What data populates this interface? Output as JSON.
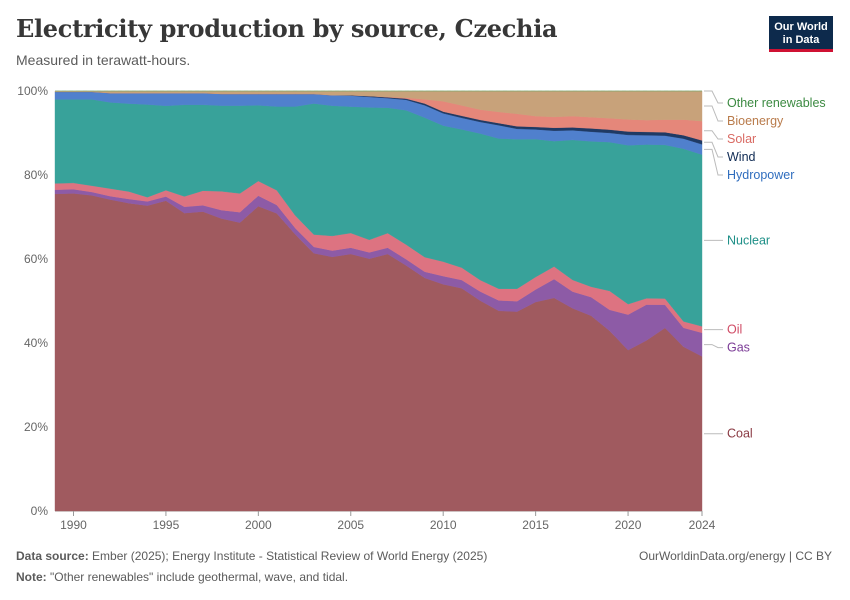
{
  "header": {
    "title": "Electricity production by source, Czechia",
    "subtitle": "Measured in terawatt-hours.",
    "logo_line1": "Our World",
    "logo_line2": "in Data"
  },
  "footer": {
    "source_label": "Data source:",
    "source_text": "Ember (2025); Energy Institute - Statistical Review of World Energy (2025)",
    "url": "OurWorldinData.org/energy | CC BY",
    "note_label": "Note:",
    "note_text": "\"Other renewables\" include geothermal, wave, and tidal."
  },
  "chart_data": {
    "type": "area",
    "stacked": true,
    "normalized": true,
    "x_ticks": [
      "1990",
      "1995",
      "2000",
      "2005",
      "2010",
      "2015",
      "2020",
      "2024"
    ],
    "y_ticks": [
      "0%",
      "20%",
      "40%",
      "60%",
      "80%",
      "100%"
    ],
    "ylim": [
      0,
      100
    ],
    "xlim": [
      1989,
      2024
    ],
    "grid": true,
    "legend_placement": "right, inline labels",
    "x": [
      1989,
      1990,
      1991,
      1992,
      1993,
      1994,
      1995,
      1996,
      1997,
      1998,
      1999,
      2000,
      2001,
      2002,
      2003,
      2004,
      2005,
      2006,
      2007,
      2008,
      2009,
      2010,
      2011,
      2012,
      2013,
      2014,
      2015,
      2016,
      2017,
      2018,
      2019,
      2020,
      2021,
      2022,
      2023,
      2024
    ],
    "series": [
      {
        "name": "Coal",
        "color": "#a05a5f",
        "values": [
          75.5,
          76,
          75,
          74,
          73.5,
          72.5,
          73.5,
          71.5,
          71.5,
          70,
          69,
          72.5,
          71,
          66,
          62,
          60.5,
          61,
          60,
          61.5,
          58.5,
          56,
          55,
          54,
          51,
          48,
          48,
          50,
          51,
          48.5,
          47,
          43,
          38.5,
          40.5,
          43.5,
          39,
          36
        ]
      },
      {
        "name": "Gas",
        "color": "#8d5ba6",
        "values": [
          1,
          1,
          0.8,
          0.8,
          1,
          1,
          1,
          1.5,
          1.5,
          2,
          2.5,
          2.5,
          2,
          1.5,
          1.5,
          1.5,
          1.5,
          1.5,
          1.5,
          1.5,
          1.5,
          2,
          2,
          2.2,
          2.5,
          2.5,
          3,
          4.5,
          4,
          4.5,
          5,
          8.5,
          8.5,
          5.5,
          4.5,
          5.5
        ]
      },
      {
        "name": "Oil",
        "color": "#dd7381",
        "values": [
          1.5,
          1.5,
          1.5,
          1.8,
          1.8,
          1,
          1.5,
          2.5,
          3.5,
          4.5,
          4.5,
          3.5,
          3.5,
          3,
          3,
          3.5,
          3.5,
          3,
          3.5,
          3.5,
          3.5,
          3.5,
          3,
          2.8,
          2.8,
          3,
          3,
          3,
          2.8,
          2.5,
          4.5,
          2.5,
          1.5,
          1.5,
          1.5,
          1.5
        ]
      },
      {
        "name": "Nuclear",
        "color": "#38a29a",
        "values": [
          20,
          20,
          20.5,
          20.5,
          21,
          22,
          20,
          22,
          20.5,
          20.5,
          21,
          18,
          20,
          26,
          31.5,
          31,
          30,
          31.5,
          30,
          32,
          33.5,
          33,
          33.5,
          35.5,
          36,
          36,
          33,
          30,
          33.5,
          35,
          35.5,
          38,
          36.5,
          36.5,
          41,
          40
        ]
      },
      {
        "name": "Hydropower",
        "color": "#5080cd",
        "values": [
          1.8,
          1.8,
          1.8,
          2.2,
          2.5,
          2.7,
          3,
          2.8,
          2.8,
          2.8,
          2.8,
          2.7,
          3,
          3,
          2.3,
          2.5,
          2.6,
          2.5,
          2.3,
          2.5,
          3,
          3,
          2.8,
          2.8,
          3.2,
          2.5,
          2.3,
          2.5,
          2.3,
          2.3,
          2.2,
          2.5,
          2.2,
          2.2,
          2.4,
          2.4
        ]
      },
      {
        "name": "Wind",
        "color": "#1f3a64",
        "values": [
          0,
          0,
          0,
          0,
          0,
          0,
          0,
          0,
          0,
          0,
          0,
          0,
          0,
          0,
          0,
          0,
          0.1,
          0.2,
          0.2,
          0.3,
          0.4,
          0.4,
          0.5,
          0.5,
          0.5,
          0.6,
          0.6,
          0.7,
          0.7,
          0.8,
          0.8,
          0.8,
          0.8,
          0.8,
          0.8,
          0.9
        ]
      },
      {
        "name": "Solar",
        "color": "#e5877a",
        "values": [
          0,
          0,
          0,
          0,
          0,
          0,
          0,
          0,
          0,
          0,
          0,
          0,
          0,
          0,
          0,
          0,
          0,
          0,
          0.1,
          0.2,
          1,
          2.5,
          2.5,
          2.5,
          2.7,
          3,
          2.6,
          2.6,
          2.7,
          2.7,
          2.7,
          2.9,
          2.8,
          3,
          3.7,
          4.5
        ]
      },
      {
        "name": "Bioenergy",
        "color": "#c8a27a",
        "values": [
          0.2,
          0.2,
          0.2,
          0.5,
          0.5,
          0.5,
          0.5,
          0.5,
          0.5,
          0.7,
          0.7,
          0.7,
          0.7,
          0.7,
          0.7,
          1,
          1,
          1.2,
          1.4,
          1.6,
          2,
          2.5,
          3.5,
          4.5,
          5,
          5.5,
          6,
          6.2,
          6,
          6.3,
          6.5,
          6.8,
          6.9,
          6.8,
          6.8,
          7
        ]
      },
      {
        "name": "Other renewables",
        "color": "#6aa86b",
        "values": [
          0,
          0,
          0,
          0,
          0,
          0,
          0,
          0,
          0,
          0,
          0,
          0,
          0,
          0,
          0,
          0,
          0,
          0,
          0,
          0,
          0,
          0,
          0,
          0,
          0,
          0,
          0,
          0,
          0,
          0,
          0,
          0,
          0,
          0,
          0,
          0
        ]
      }
    ],
    "legend_order": [
      "Other renewables",
      "Bioenergy",
      "Solar",
      "Wind",
      "Hydropower",
      "Nuclear",
      "Oil",
      "Gas",
      "Coal"
    ],
    "label_colors": {
      "Other renewables": "#3c8a42",
      "Bioenergy": "#b97b4b",
      "Solar": "#d96a63",
      "Wind": "#102b54",
      "Hydropower": "#2f6dbe",
      "Nuclear": "#1d8f87",
      "Oil": "#d04b65",
      "Gas": "#7b3b96",
      "Coal": "#8a3a43"
    }
  }
}
